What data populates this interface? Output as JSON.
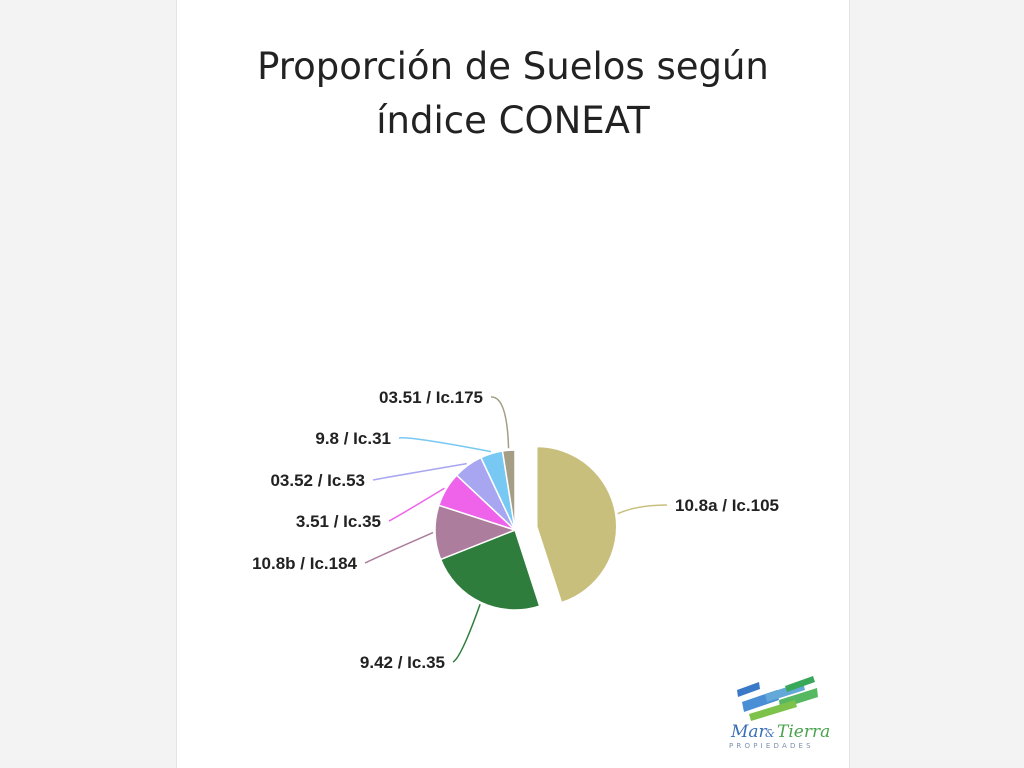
{
  "chart_data": {
    "type": "pie",
    "title": "Proporción de Suelos según índice CONEAT",
    "title_lines": [
      "Proporción de Suelos según",
      "índice CONEAT"
    ],
    "slices": [
      {
        "label": "10.8a / Ic.105",
        "value": 45,
        "color": "#c9bf7d",
        "exploded": true
      },
      {
        "label": "9.42 / Ic.35",
        "value": 24,
        "color": "#2e7d3c"
      },
      {
        "label": "10.8b / Ic.184",
        "value": 11,
        "color": "#ad7d9e"
      },
      {
        "label": "3.51 / Ic.35",
        "value": 7,
        "color": "#ee63ea"
      },
      {
        "label": "03.52 / Ic.53",
        "value": 6,
        "color": "#a8a6f0"
      },
      {
        "label": "9.8 / Ic.31",
        "value": 4.5,
        "color": "#78c8f4"
      },
      {
        "label": "03.51 / Ic.175",
        "value": 2.5,
        "color": "#a59d86"
      }
    ]
  },
  "logo": {
    "brand_left": "Mar",
    "brand_amp": "&",
    "brand_right": "Tierra",
    "tagline": "PROPIEDADES"
  }
}
